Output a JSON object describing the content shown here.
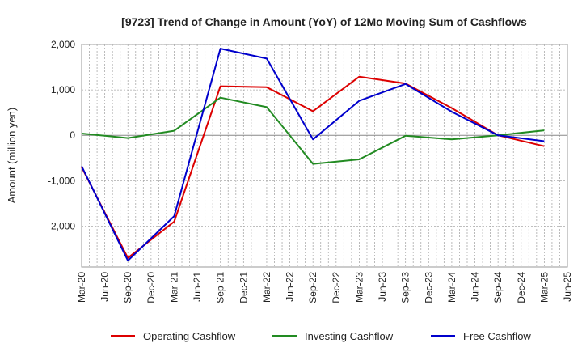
{
  "chart_data": {
    "type": "line",
    "title": "[9723]  Trend of Change in Amount (YoY) of 12Mo Moving Sum of Cashflows",
    "xlabel": "",
    "ylabel": "Amount (million yen)",
    "ylim": [
      -2900,
      2000
    ],
    "yticks": [
      2000,
      1000,
      0,
      -1000,
      -2000
    ],
    "ytick_labels": [
      "2,000",
      "1,000",
      "0",
      "-1,000",
      "-2,000"
    ],
    "categories": [
      "Mar-20",
      "Jun-20",
      "Sep-20",
      "Dec-20",
      "Mar-21",
      "Jun-21",
      "Sep-21",
      "Dec-21",
      "Mar-22",
      "Jun-22",
      "Sep-22",
      "Dec-22",
      "Mar-23",
      "Jun-23",
      "Sep-23",
      "Dec-23",
      "Mar-24",
      "Jun-24",
      "Sep-24",
      "Dec-24",
      "Mar-25",
      "Jun-25"
    ],
    "grid": true,
    "legend_position": "bottom",
    "series": [
      {
        "name": "Operating Cashflow",
        "color": "#dd0000",
        "points": [
          [
            "Mar-20",
            -700
          ],
          [
            "Sep-20",
            -2700
          ],
          [
            "Mar-21",
            -1900
          ],
          [
            "Sep-21",
            1080
          ],
          [
            "Mar-22",
            1060
          ],
          [
            "Sep-22",
            530
          ],
          [
            "Mar-23",
            1290
          ],
          [
            "Sep-23",
            1140
          ],
          [
            "Mar-24",
            600
          ],
          [
            "Sep-24",
            0
          ],
          [
            "Mar-25",
            -240
          ]
        ]
      },
      {
        "name": "Investing Cashflow",
        "color": "#228b22",
        "points": [
          [
            "Mar-20",
            40
          ],
          [
            "Sep-20",
            -60
          ],
          [
            "Mar-21",
            100
          ],
          [
            "Sep-21",
            830
          ],
          [
            "Mar-22",
            620
          ],
          [
            "Sep-22",
            -630
          ],
          [
            "Mar-23",
            -530
          ],
          [
            "Sep-23",
            -10
          ],
          [
            "Mar-24",
            -90
          ],
          [
            "Sep-24",
            0
          ],
          [
            "Mar-25",
            110
          ]
        ]
      },
      {
        "name": "Free Cashflow",
        "color": "#0000cc",
        "points": [
          [
            "Mar-20",
            -680
          ],
          [
            "Sep-20",
            -2760
          ],
          [
            "Mar-21",
            -1780
          ],
          [
            "Sep-21",
            1910
          ],
          [
            "Mar-22",
            1690
          ],
          [
            "Sep-22",
            -90
          ],
          [
            "Mar-23",
            760
          ],
          [
            "Sep-23",
            1130
          ],
          [
            "Mar-24",
            520
          ],
          [
            "Sep-24",
            0
          ],
          [
            "Mar-25",
            -130
          ]
        ]
      }
    ]
  }
}
